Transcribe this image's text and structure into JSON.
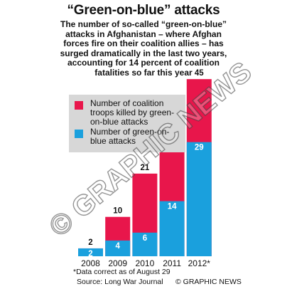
{
  "header": {
    "title": "“Green-on-blue” attacks",
    "subtitle": "The number of so-called “green-on-blue” attacks in Afghanistan – where Afghan forces fire on their coalition allies – has surged dramatically in the last two years, accounting for 14 percent of coalition fatalities so far this year"
  },
  "legend": {
    "killed_label": "Number of coalition troops killed by green-on-blue attacks",
    "attacks_label": "Number of green-on-blue attacks"
  },
  "colors": {
    "killed": "#e8164b",
    "attacks": "#1aa0dd",
    "legend_bg": "#d7d7d7"
  },
  "chart_data": {
    "type": "bar",
    "categories": [
      "2008",
      "2009",
      "2010",
      "2011",
      "2012*"
    ],
    "series": [
      {
        "name": "Number of coalition troops killed by green-on-blue attacks",
        "values": [
          2,
          10,
          21,
          31,
          45
        ]
      },
      {
        "name": "Number of green-on-blue attacks",
        "values": [
          2,
          4,
          6,
          14,
          29
        ]
      }
    ],
    "title": "“Green-on-blue” attacks",
    "xlabel": "",
    "ylabel": "",
    "ylim": [
      0,
      45
    ],
    "grid": false,
    "legend": "top-left",
    "layout": "overlapping bars, attacks drawn inside the killed bar"
  },
  "footer": {
    "note": "*Data correct as of August 29",
    "source": "Source: Long War Journal",
    "credit": "© GRAPHIC NEWS"
  },
  "watermark": "© GRAPHIC NEWS"
}
